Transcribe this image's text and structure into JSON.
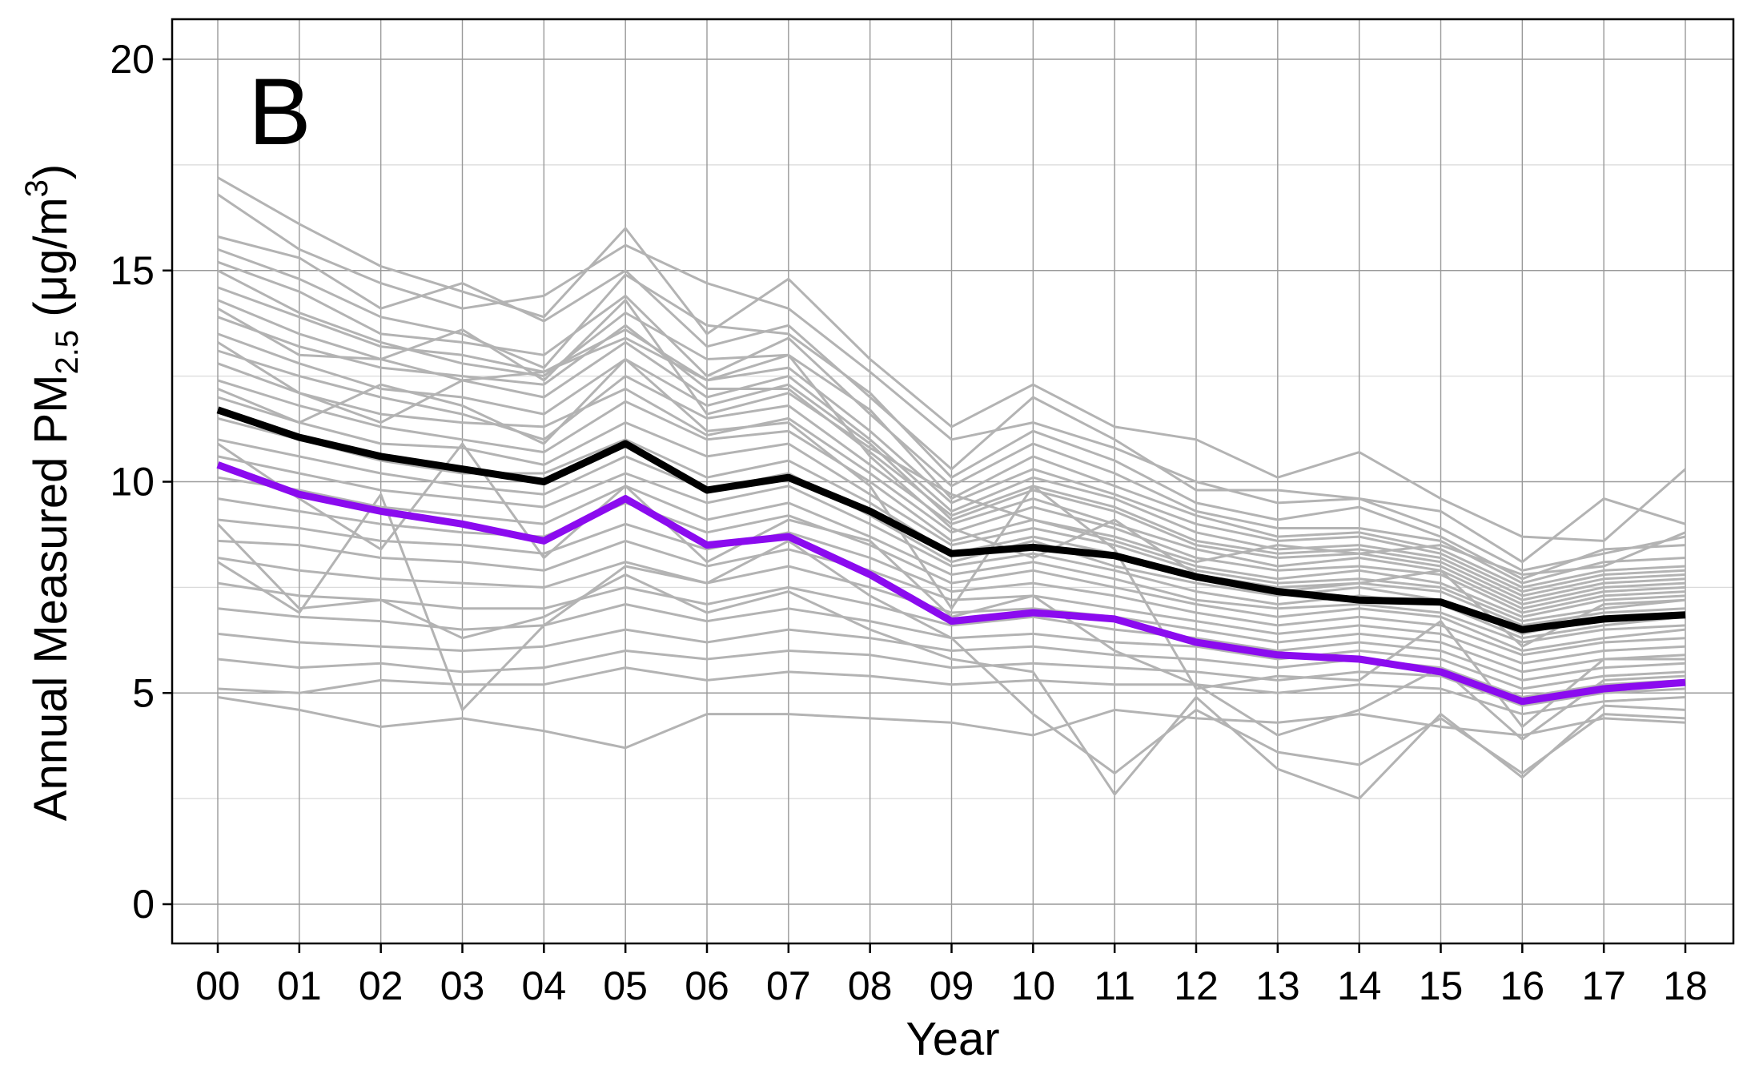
{
  "chart_data": {
    "type": "line",
    "panel_label": "B",
    "xlabel": "Year",
    "ylabel_parts": {
      "prefix": "Annual Measured PM",
      "subscript": "2.5",
      "unit_open": " (μg/m",
      "superscript": "3",
      "unit_close": ")"
    },
    "categories": [
      "00",
      "01",
      "02",
      "03",
      "04",
      "05",
      "06",
      "07",
      "08",
      "09",
      "10",
      "11",
      "12",
      "13",
      "14",
      "15",
      "16",
      "17",
      "18"
    ],
    "ylim": [
      -1,
      21
    ],
    "yticks": [
      0,
      5,
      10,
      15,
      20
    ],
    "grid": true,
    "series": [
      {
        "role": "black-summary",
        "color": "#000000",
        "values": [
          11.7,
          11.05,
          10.6,
          10.3,
          10.0,
          10.9,
          9.8,
          10.1,
          9.3,
          8.3,
          8.45,
          8.25,
          7.75,
          7.4,
          7.2,
          7.15,
          6.5,
          6.75,
          6.85
        ]
      },
      {
        "role": "purple-summary",
        "color": "#8B0BEF",
        "values": [
          10.4,
          9.7,
          9.3,
          9.0,
          8.6,
          9.6,
          8.5,
          8.7,
          7.8,
          6.7,
          6.9,
          6.75,
          6.2,
          5.9,
          5.8,
          5.5,
          4.8,
          5.1,
          5.25
        ]
      }
    ],
    "background_series_color": "#B3B3B3",
    "background_series": [
      [
        17.2,
        16.1,
        15.1,
        14.5,
        13.9,
        16.0,
        13.5,
        14.8,
        12.9,
        11.3,
        12.3,
        11.3,
        11.0,
        10.1,
        10.7,
        9.6,
        8.7,
        8.6,
        10.3
      ],
      [
        16.8,
        15.5,
        14.7,
        14.1,
        14.4,
        15.6,
        14.7,
        14.1,
        12.6,
        11.0,
        11.4,
        10.8,
        10.0,
        9.5,
        9.6,
        9.3,
        8.1,
        9.6,
        9.0
      ],
      [
        15.8,
        15.3,
        14.1,
        14.7,
        13.8,
        15.0,
        13.2,
        13.7,
        12.0,
        10.3,
        12.0,
        11.0,
        9.8,
        9.8,
        9.6,
        8.9,
        7.9,
        8.3,
        8.7
      ],
      [
        15.5,
        14.8,
        13.9,
        13.5,
        12.7,
        14.9,
        13.7,
        13.5,
        12.1,
        10.1,
        11.2,
        10.5,
        9.5,
        9.1,
        9.4,
        8.7,
        7.7,
        8.4,
        8.5
      ],
      [
        15.2,
        14.5,
        13.5,
        13.3,
        13.0,
        14.4,
        12.5,
        13.4,
        11.6,
        9.9,
        10.9,
        10.2,
        9.3,
        8.9,
        8.9,
        8.6,
        7.6,
        8.1,
        8.2
      ],
      [
        15.0,
        14.0,
        13.3,
        12.8,
        12.5,
        14.0,
        12.9,
        13.0,
        11.7,
        9.6,
        10.6,
        9.9,
        9.2,
        8.7,
        8.8,
        8.4,
        7.5,
        7.9,
        8.0
      ],
      [
        14.6,
        13.9,
        13.2,
        13.0,
        12.6,
        13.6,
        12.4,
        12.7,
        11.2,
        9.5,
        10.3,
        9.7,
        9.0,
        8.6,
        8.7,
        8.3,
        7.4,
        7.8,
        7.9
      ],
      [
        14.3,
        13.5,
        12.9,
        12.4,
        12.0,
        13.3,
        12.0,
        12.5,
        11.0,
        9.3,
        10.1,
        9.6,
        8.8,
        8.4,
        8.5,
        8.2,
        7.3,
        7.7,
        7.8
      ],
      [
        13.9,
        13.2,
        12.7,
        12.5,
        12.3,
        13.7,
        12.2,
        12.2,
        10.7,
        9.2,
        9.9,
        9.4,
        8.6,
        8.3,
        8.4,
        8.1,
        7.2,
        7.6,
        7.7
      ],
      [
        13.5,
        12.8,
        12.2,
        12.0,
        11.6,
        12.9,
        11.8,
        12.3,
        10.9,
        9.1,
        9.8,
        9.3,
        8.5,
        8.2,
        8.3,
        8.0,
        7.1,
        7.5,
        7.6
      ],
      [
        13.1,
        12.5,
        12.0,
        11.6,
        11.0,
        12.5,
        11.5,
        11.8,
        10.4,
        9.0,
        9.6,
        9.0,
        8.4,
        8.0,
        8.2,
        7.9,
        7.0,
        7.4,
        7.5
      ],
      [
        12.8,
        12.1,
        11.6,
        11.4,
        11.3,
        12.2,
        11.1,
        11.5,
        10.2,
        8.8,
        9.4,
        8.9,
        8.2,
        7.9,
        8.0,
        7.8,
        6.9,
        7.3,
        7.4
      ],
      [
        12.4,
        11.8,
        11.3,
        11.0,
        10.7,
        11.9,
        11.0,
        11.2,
        10.0,
        8.6,
        9.1,
        8.6,
        8.0,
        7.7,
        7.9,
        7.6,
        6.8,
        7.2,
        7.3
      ],
      [
        12.0,
        11.4,
        10.9,
        10.8,
        10.4,
        11.4,
        10.6,
        10.9,
        9.7,
        8.5,
        8.9,
        8.5,
        7.9,
        7.6,
        7.7,
        7.5,
        6.7,
        7.0,
        7.2
      ],
      [
        11.5,
        11.0,
        10.5,
        10.2,
        10.2,
        11.0,
        10.1,
        10.5,
        9.5,
        8.3,
        8.7,
        8.3,
        7.7,
        7.4,
        7.6,
        7.4,
        6.6,
        6.9,
        7.0
      ],
      [
        11.0,
        10.6,
        10.2,
        9.9,
        9.7,
        10.6,
        9.8,
        10.2,
        9.2,
        8.1,
        8.6,
        8.0,
        7.6,
        7.3,
        7.5,
        7.2,
        6.4,
        6.8,
        6.9
      ],
      [
        10.6,
        10.2,
        9.8,
        9.6,
        9.4,
        10.2,
        9.5,
        9.9,
        9.0,
        8.0,
        8.3,
        7.9,
        7.4,
        7.1,
        7.3,
        7.1,
        6.3,
        6.6,
        6.8
      ],
      [
        10.1,
        9.8,
        9.4,
        9.2,
        9.0,
        9.9,
        9.1,
        9.5,
        8.7,
        7.8,
        8.1,
        7.7,
        7.2,
        7.0,
        7.1,
        6.9,
        6.2,
        6.5,
        6.6
      ],
      [
        9.6,
        9.3,
        9.0,
        8.8,
        8.7,
        9.5,
        8.8,
        9.2,
        8.5,
        7.6,
        7.9,
        7.5,
        7.1,
        6.8,
        7.0,
        6.8,
        6.0,
        6.3,
        6.5
      ],
      [
        9.1,
        8.9,
        8.6,
        8.5,
        8.3,
        9.0,
        8.4,
        8.8,
        8.2,
        7.4,
        7.6,
        7.3,
        6.9,
        6.6,
        6.8,
        6.6,
        5.9,
        6.2,
        6.3
      ],
      [
        8.6,
        8.5,
        8.2,
        8.1,
        7.9,
        8.6,
        8.0,
        8.4,
        7.9,
        7.2,
        7.3,
        7.0,
        6.7,
        6.4,
        6.6,
        6.4,
        5.7,
        6.0,
        6.1
      ],
      [
        8.2,
        7.9,
        7.7,
        7.6,
        7.5,
        8.1,
        7.6,
        8.0,
        7.5,
        6.9,
        7.0,
        6.8,
        6.5,
        6.2,
        6.4,
        6.2,
        5.5,
        5.8,
        5.9
      ],
      [
        7.6,
        7.3,
        7.2,
        7.0,
        7.0,
        7.5,
        7.1,
        7.5,
        7.1,
        6.6,
        6.8,
        6.5,
        6.3,
        6.0,
        6.2,
        6.0,
        5.3,
        5.6,
        5.7
      ],
      [
        7.0,
        6.8,
        6.7,
        6.5,
        6.6,
        7.1,
        6.7,
        7.0,
        6.7,
        6.3,
        6.4,
        6.2,
        6.1,
        5.8,
        6.0,
        5.8,
        5.1,
        5.4,
        5.5
      ],
      [
        6.4,
        6.2,
        6.1,
        6.0,
        6.1,
        6.5,
        6.2,
        6.5,
        6.3,
        6.0,
        6.1,
        5.9,
        5.8,
        5.6,
        5.8,
        5.6,
        4.9,
        5.2,
        5.3
      ],
      [
        5.8,
        5.6,
        5.7,
        5.5,
        5.6,
        6.0,
        5.8,
        6.0,
        5.9,
        5.6,
        5.7,
        5.6,
        5.5,
        5.3,
        5.5,
        5.4,
        4.7,
        5.0,
        5.1
      ],
      [
        5.1,
        5.0,
        5.3,
        5.2,
        5.2,
        5.6,
        5.3,
        5.5,
        5.4,
        5.2,
        5.3,
        5.2,
        5.2,
        5.0,
        5.2,
        5.1,
        4.5,
        4.8,
        4.9
      ],
      [
        4.9,
        4.6,
        4.2,
        4.4,
        4.1,
        3.7,
        4.5,
        4.5,
        4.4,
        4.3,
        4.0,
        4.6,
        4.4,
        4.3,
        4.5,
        4.2,
        4.0,
        4.4,
        4.3
      ],
      [
        9.0,
        7.0,
        7.2,
        6.3,
        6.8,
        7.8,
        6.9,
        7.4,
        6.5,
        5.8,
        5.5,
        2.6,
        4.9,
        3.2,
        2.5,
        4.5,
        3.0,
        4.7,
        4.6
      ],
      [
        8.1,
        6.9,
        9.7,
        4.6,
        6.6,
        8.0,
        7.6,
        8.6,
        7.3,
        6.3,
        4.5,
        3.1,
        4.6,
        3.6,
        3.3,
        4.4,
        3.1,
        4.5,
        4.4
      ],
      [
        10.9,
        9.6,
        8.4,
        10.9,
        8.2,
        9.9,
        8.1,
        9.1,
        8.6,
        6.8,
        7.3,
        6.0,
        5.2,
        4.0,
        4.6,
        5.6,
        3.9,
        5.3,
        5.4
      ],
      [
        12.2,
        11.4,
        12.3,
        11.8,
        10.9,
        12.9,
        11.2,
        11.4,
        9.9,
        7.0,
        9.9,
        8.4,
        5.1,
        5.4,
        5.3,
        6.7,
        4.2,
        5.8,
        5.8
      ],
      [
        13.3,
        12.1,
        11.4,
        12.4,
        12.6,
        13.4,
        12.4,
        13.0,
        10.6,
        8.9,
        8.2,
        9.1,
        7.8,
        7.5,
        7.6,
        7.9,
        6.1,
        7.1,
        7.2
      ],
      [
        14.1,
        13.0,
        12.9,
        13.6,
        12.4,
        14.3,
        11.6,
        12.1,
        10.8,
        9.7,
        9.1,
        8.7,
        8.1,
        8.5,
        8.3,
        8.5,
        7.8,
        8.0,
        8.8
      ]
    ]
  }
}
